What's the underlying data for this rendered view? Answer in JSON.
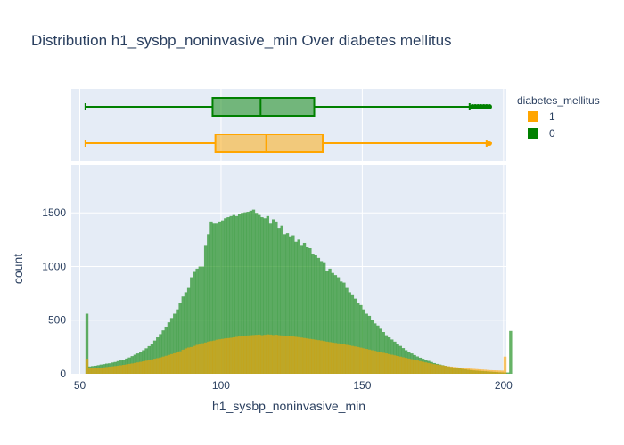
{
  "chart_data": {
    "type": "histogram",
    "title": "Distribution h1_sysbp_noninvasive_min Over diabetes mellitus",
    "xlabel": "h1_sysbp_noninvasive_min",
    "ylabel": "count",
    "xlim": [
      47,
      201
    ],
    "ylim": [
      0,
      1950
    ],
    "x_ticks": [
      50,
      100,
      150,
      200
    ],
    "y_ticks": [
      0,
      500,
      1000,
      1500
    ],
    "bin_start": 52,
    "bin_width": 1,
    "barmode": "overlay",
    "legend": {
      "title": "diabetes_mellitus",
      "position": "top-right"
    },
    "series": [
      {
        "name": "1",
        "color": "#FFA500",
        "values": [
          140,
          50,
          52,
          54,
          56,
          58,
          60,
          63,
          66,
          69,
          72,
          75,
          79,
          83,
          87,
          92,
          96,
          101,
          106,
          111,
          116,
          122,
          128,
          134,
          140,
          146,
          152,
          160,
          168,
          176,
          184,
          192,
          200,
          210,
          225,
          237,
          245,
          250,
          260,
          270,
          280,
          285,
          292,
          300,
          305,
          310,
          318,
          322,
          326,
          330,
          333,
          336,
          340,
          345,
          348,
          352,
          355,
          358,
          360,
          362,
          364,
          366,
          360,
          364,
          368,
          366,
          362,
          365,
          360,
          358,
          356,
          355,
          352,
          348,
          345,
          342,
          338,
          334,
          330,
          326,
          322,
          318,
          314,
          310,
          305,
          300,
          296,
          292,
          288,
          284,
          280,
          275,
          270,
          265,
          260,
          255,
          250,
          244,
          238,
          232,
          226,
          220,
          214,
          208,
          202,
          196,
          190,
          184,
          178,
          172,
          166,
          160,
          154,
          148,
          142,
          136,
          130,
          124,
          118,
          112,
          106,
          100,
          95,
          90,
          86,
          82,
          78,
          74,
          70,
          67,
          64,
          61,
          58,
          55,
          52,
          50,
          48,
          46,
          44,
          42,
          40,
          38,
          36,
          34,
          33,
          32,
          31,
          30,
          160
        ]
      },
      {
        "name": "0",
        "color": "#008000",
        "values": [
          560,
          68,
          72,
          75,
          80,
          86,
          90,
          95,
          98,
          105,
          110,
          118,
          124,
          132,
          142,
          152,
          165,
          178,
          190,
          204,
          220,
          238,
          258,
          280,
          310,
          340,
          370,
          405,
          440,
          480,
          520,
          560,
          600,
          660,
          720,
          760,
          800,
          900,
          950,
          980,
          1000,
          1000,
          1200,
          1300,
          1420,
          1400,
          1400,
          1420,
          1430,
          1450,
          1460,
          1470,
          1480,
          1470,
          1490,
          1500,
          1505,
          1510,
          1520,
          1530,
          1500,
          1480,
          1460,
          1450,
          1470,
          1400,
          1440,
          1420,
          1360,
          1380,
          1300,
          1310,
          1280,
          1290,
          1230,
          1250,
          1200,
          1220,
          1180,
          1170,
          1120,
          1110,
          1080,
          1050,
          1040,
          960,
          980,
          940,
          920,
          900,
          860,
          850,
          800,
          760,
          740,
          700,
          660,
          640,
          600,
          560,
          540,
          500,
          470,
          450,
          420,
          390,
          360,
          340,
          320,
          300,
          280,
          260,
          240,
          220,
          205,
          190,
          175,
          162,
          150,
          140,
          130,
          120,
          110,
          100,
          92,
          86,
          80,
          74,
          68,
          63,
          58,
          54,
          50,
          46,
          42,
          38,
          35,
          32,
          30,
          28,
          26,
          24,
          22,
          20,
          18,
          16,
          14,
          13,
          12,
          12,
          400
        ]
      }
    ],
    "box": [
      {
        "series": "0",
        "min": 52,
        "q1": 97,
        "median": 114,
        "q3": 133,
        "upper_fence": 188,
        "max": 195,
        "outliers": [
          189,
          190,
          191,
          192,
          193,
          194,
          195
        ]
      },
      {
        "series": "1",
        "min": 52,
        "q1": 98,
        "median": 116,
        "q3": 136,
        "upper_fence": 194,
        "max": 195,
        "outliers": [
          194.5,
          195
        ]
      }
    ]
  }
}
